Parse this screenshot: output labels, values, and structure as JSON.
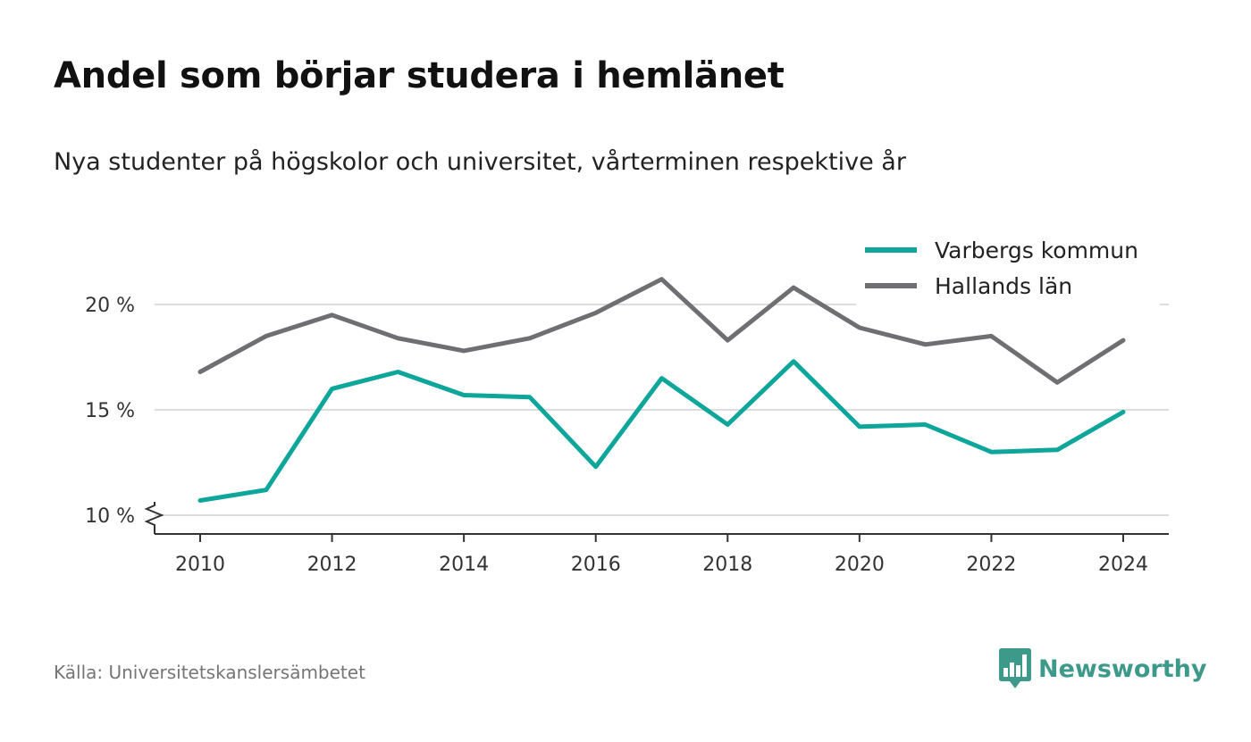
{
  "title": "Andel som börjar studera i hemlänet",
  "subtitle": "Nya studenter på högskolor och universitet, vårterminen respektive år",
  "source": "Källa: Universitetskanslersämbetet",
  "brand": {
    "name": "Newsworthy",
    "icon": "newsworthy-logo-icon",
    "color": "#3d9a8b"
  },
  "colors": {
    "grid": "#dddddd",
    "axis": "#333333",
    "tick_text": "#333333"
  },
  "chart_data": {
    "type": "line",
    "x": [
      2010,
      2011,
      2012,
      2013,
      2014,
      2015,
      2016,
      2017,
      2018,
      2019,
      2020,
      2021,
      2022,
      2023,
      2024
    ],
    "x_ticks": [
      2010,
      2012,
      2014,
      2016,
      2018,
      2020,
      2022,
      2024
    ],
    "y_ticks": [
      10,
      15,
      20
    ],
    "y_tick_labels": [
      "10 %",
      "15 %",
      "20 %"
    ],
    "ylim": [
      9.1,
      22
    ],
    "y_axis_break": true,
    "grid": true,
    "legend_position": "top-right",
    "series": [
      {
        "name": "Varbergs kommun",
        "color": "#0ea69a",
        "values": [
          10.7,
          11.2,
          16.0,
          16.8,
          15.7,
          15.6,
          12.3,
          16.5,
          14.3,
          17.3,
          14.2,
          14.3,
          13.0,
          13.1,
          14.9
        ]
      },
      {
        "name": "Hallands län",
        "color": "#6f6f73",
        "values": [
          16.8,
          18.5,
          19.5,
          18.4,
          17.8,
          18.4,
          19.6,
          21.2,
          18.3,
          20.8,
          18.9,
          18.1,
          18.5,
          16.3,
          18.3
        ]
      }
    ]
  }
}
